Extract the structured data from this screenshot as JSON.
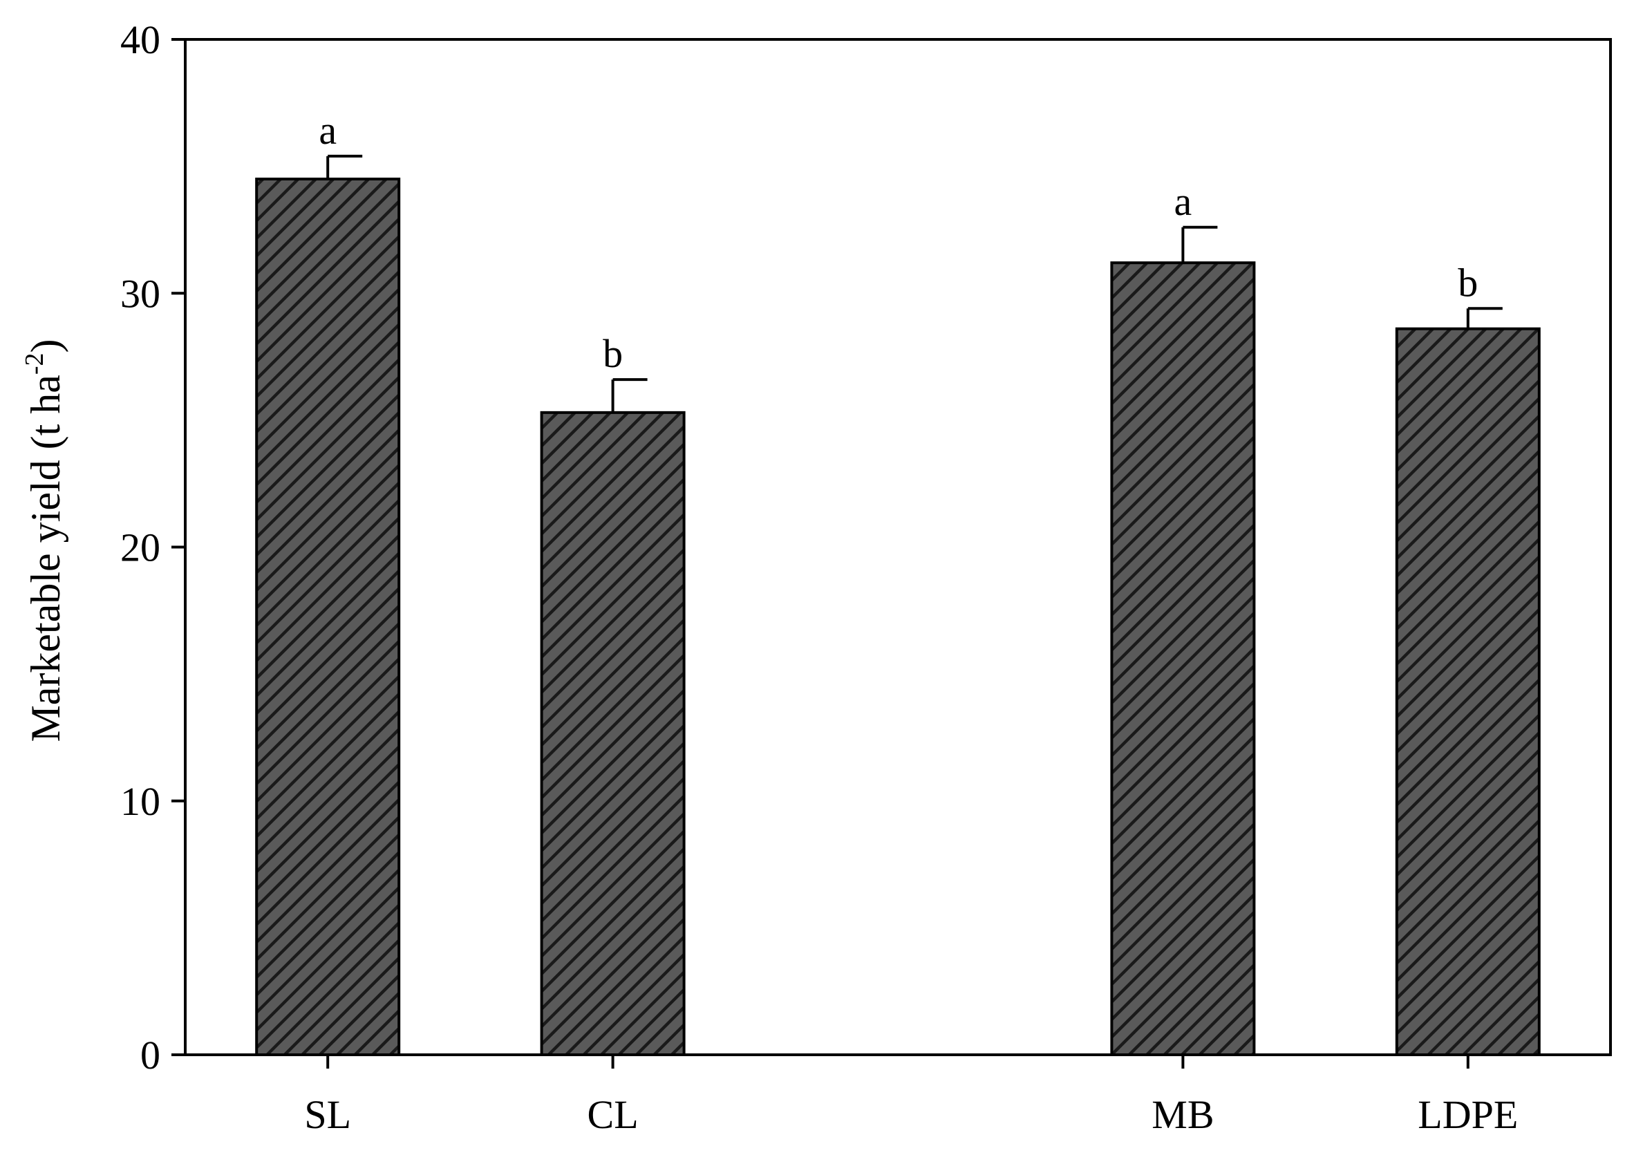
{
  "chart_data": {
    "type": "bar",
    "categories": [
      "SL",
      "CL",
      "",
      "MB",
      "LDPE"
    ],
    "values": [
      34.5,
      25.3,
      0,
      31.2,
      28.6
    ],
    "errors": [
      0.9,
      1.3,
      0,
      1.4,
      0.8
    ],
    "significance": [
      "a",
      "b",
      "",
      "a",
      "b"
    ],
    "ylabel": {
      "main": "Marketable yield (t ha",
      "superscript": "-2",
      "close": ")"
    },
    "xlabel": "",
    "ylim": [
      0,
      40
    ],
    "yticks": [
      0,
      10,
      20,
      30,
      40
    ],
    "grid": false,
    "legend": "none",
    "colors": {
      "bar_fill": "#5a5a5a",
      "bar_hatch": "#1a1a1a",
      "axis": "#000000",
      "background": "#ffffff"
    },
    "bar_pattern": "diagonal-hatch"
  }
}
